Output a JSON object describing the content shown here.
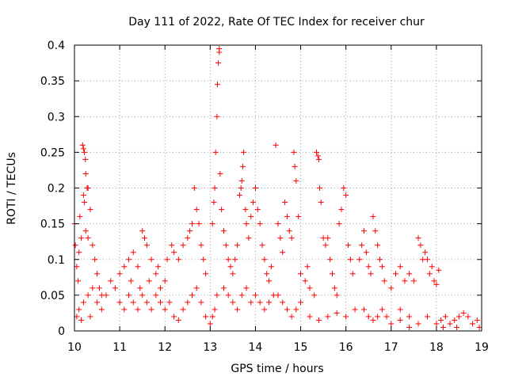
{
  "chart_data": {
    "type": "scatter",
    "title": "Day 111 of 2022, Rate Of TEC Index for receiver chur",
    "xlabel": "GPS time / hours",
    "ylabel": "ROTI / TECUs",
    "xlim": [
      10,
      19
    ],
    "ylim": [
      0,
      0.4
    ],
    "x_ticks": [
      10,
      11,
      12,
      13,
      14,
      15,
      16,
      17,
      18,
      19
    ],
    "y_ticks": [
      0,
      0.05,
      0.1,
      0.15,
      0.2,
      0.25,
      0.3,
      0.35,
      0.4
    ],
    "y_tick_labels": [
      "0",
      "0.05",
      "0.1",
      "0.15",
      "0.2",
      "0.25",
      "0.3",
      "0.35",
      "0.4"
    ],
    "grid": true,
    "marker_color": "#ff0000",
    "marker": "plus",
    "legend": "none",
    "series": [
      {
        "values": [
          [
            10.0,
            0.15
          ],
          [
            10.02,
            0.12
          ],
          [
            10.05,
            0.09
          ],
          [
            10.08,
            0.07
          ],
          [
            10.1,
            0.11
          ],
          [
            10.12,
            0.16
          ],
          [
            10.15,
            0.13
          ],
          [
            10.18,
            0.26
          ],
          [
            10.2,
            0.255
          ],
          [
            10.22,
            0.25
          ],
          [
            10.24,
            0.24
          ],
          [
            10.25,
            0.22
          ],
          [
            10.28,
            0.2
          ],
          [
            10.3,
            0.2
          ],
          [
            10.35,
            0.17
          ],
          [
            10.2,
            0.19
          ],
          [
            10.22,
            0.18
          ],
          [
            10.25,
            0.14
          ],
          [
            10.3,
            0.13
          ],
          [
            10.4,
            0.12
          ],
          [
            10.45,
            0.1
          ],
          [
            10.5,
            0.08
          ],
          [
            10.55,
            0.06
          ],
          [
            10.6,
            0.05
          ],
          [
            10.1,
            0.03
          ],
          [
            10.2,
            0.04
          ],
          [
            10.3,
            0.05
          ],
          [
            10.4,
            0.06
          ],
          [
            10.5,
            0.04
          ],
          [
            10.6,
            0.03
          ],
          [
            10.05,
            0.02
          ],
          [
            10.15,
            0.015
          ],
          [
            10.35,
            0.02
          ],
          [
            10.7,
            0.05
          ],
          [
            10.8,
            0.07
          ],
          [
            10.9,
            0.06
          ],
          [
            11.0,
            0.08
          ],
          [
            11.1,
            0.09
          ],
          [
            11.2,
            0.1
          ],
          [
            11.3,
            0.11
          ],
          [
            11.4,
            0.09
          ],
          [
            11.5,
            0.14
          ],
          [
            11.55,
            0.13
          ],
          [
            11.6,
            0.12
          ],
          [
            11.7,
            0.1
          ],
          [
            11.8,
            0.08
          ],
          [
            11.9,
            0.06
          ],
          [
            12.0,
            0.07
          ],
          [
            11.0,
            0.04
          ],
          [
            11.1,
            0.03
          ],
          [
            11.2,
            0.05
          ],
          [
            11.3,
            0.04
          ],
          [
            11.4,
            0.03
          ],
          [
            11.5,
            0.05
          ],
          [
            11.6,
            0.04
          ],
          [
            11.7,
            0.03
          ],
          [
            11.8,
            0.05
          ],
          [
            11.9,
            0.04
          ],
          [
            12.0,
            0.03
          ],
          [
            12.1,
            0.04
          ],
          [
            11.25,
            0.07
          ],
          [
            11.45,
            0.06
          ],
          [
            11.65,
            0.07
          ],
          [
            11.85,
            0.09
          ],
          [
            12.05,
            0.1
          ],
          [
            12.15,
            0.12
          ],
          [
            12.2,
            0.11
          ],
          [
            12.3,
            0.1
          ],
          [
            12.4,
            0.12
          ],
          [
            12.5,
            0.13
          ],
          [
            12.55,
            0.14
          ],
          [
            12.6,
            0.15
          ],
          [
            12.65,
            0.2
          ],
          [
            12.7,
            0.17
          ],
          [
            12.75,
            0.15
          ],
          [
            12.8,
            0.12
          ],
          [
            12.85,
            0.1
          ],
          [
            12.9,
            0.08
          ],
          [
            12.2,
            0.02
          ],
          [
            12.3,
            0.015
          ],
          [
            12.4,
            0.03
          ],
          [
            12.5,
            0.04
          ],
          [
            12.6,
            0.05
          ],
          [
            12.7,
            0.06
          ],
          [
            12.8,
            0.04
          ],
          [
            12.9,
            0.02
          ],
          [
            13.0,
            0.01
          ],
          [
            13.05,
            0.02
          ],
          [
            13.1,
            0.03
          ],
          [
            13.15,
            0.05
          ],
          [
            13.05,
            0.15
          ],
          [
            13.08,
            0.18
          ],
          [
            13.1,
            0.2
          ],
          [
            13.12,
            0.25
          ],
          [
            13.15,
            0.3
          ],
          [
            13.16,
            0.345
          ],
          [
            13.18,
            0.375
          ],
          [
            13.2,
            0.39
          ],
          [
            13.2,
            0.395
          ],
          [
            13.22,
            0.22
          ],
          [
            13.25,
            0.17
          ],
          [
            13.3,
            0.14
          ],
          [
            13.35,
            0.12
          ],
          [
            13.4,
            0.1
          ],
          [
            13.45,
            0.09
          ],
          [
            13.5,
            0.08
          ],
          [
            13.55,
            0.1
          ],
          [
            13.6,
            0.12
          ],
          [
            13.65,
            0.19
          ],
          [
            13.68,
            0.2
          ],
          [
            13.7,
            0.21
          ],
          [
            13.72,
            0.23
          ],
          [
            13.74,
            0.25
          ],
          [
            13.78,
            0.17
          ],
          [
            13.8,
            0.15
          ],
          [
            13.85,
            0.13
          ],
          [
            13.9,
            0.16
          ],
          [
            13.95,
            0.18
          ],
          [
            14.0,
            0.2
          ],
          [
            14.05,
            0.17
          ],
          [
            14.1,
            0.15
          ],
          [
            14.15,
            0.12
          ],
          [
            14.2,
            0.1
          ],
          [
            14.25,
            0.08
          ],
          [
            14.3,
            0.07
          ],
          [
            14.35,
            0.09
          ],
          [
            13.3,
            0.06
          ],
          [
            13.4,
            0.05
          ],
          [
            13.5,
            0.04
          ],
          [
            13.6,
            0.03
          ],
          [
            13.7,
            0.05
          ],
          [
            13.8,
            0.06
          ],
          [
            13.9,
            0.04
          ],
          [
            14.0,
            0.05
          ],
          [
            14.1,
            0.04
          ],
          [
            14.2,
            0.03
          ],
          [
            14.3,
            0.04
          ],
          [
            14.4,
            0.05
          ],
          [
            14.45,
            0.26
          ],
          [
            14.5,
            0.15
          ],
          [
            14.55,
            0.13
          ],
          [
            14.6,
            0.11
          ],
          [
            14.65,
            0.18
          ],
          [
            14.7,
            0.16
          ],
          [
            14.75,
            0.14
          ],
          [
            14.8,
            0.13
          ],
          [
            14.85,
            0.25
          ],
          [
            14.87,
            0.23
          ],
          [
            14.9,
            0.21
          ],
          [
            14.95,
            0.16
          ],
          [
            14.5,
            0.05
          ],
          [
            14.6,
            0.04
          ],
          [
            14.7,
            0.03
          ],
          [
            14.8,
            0.02
          ],
          [
            14.9,
            0.03
          ],
          [
            15.0,
            0.04
          ],
          [
            15.0,
            0.08
          ],
          [
            15.1,
            0.07
          ],
          [
            15.15,
            0.09
          ],
          [
            15.2,
            0.06
          ],
          [
            15.3,
            0.05
          ],
          [
            15.35,
            0.25
          ],
          [
            15.38,
            0.245
          ],
          [
            15.4,
            0.24
          ],
          [
            15.42,
            0.2
          ],
          [
            15.45,
            0.18
          ],
          [
            15.5,
            0.13
          ],
          [
            15.55,
            0.12
          ],
          [
            15.6,
            0.13
          ],
          [
            15.65,
            0.1
          ],
          [
            15.7,
            0.08
          ],
          [
            15.75,
            0.06
          ],
          [
            15.8,
            0.05
          ],
          [
            15.85,
            0.15
          ],
          [
            15.9,
            0.17
          ],
          [
            15.95,
            0.2
          ],
          [
            16.0,
            0.19
          ],
          [
            16.05,
            0.12
          ],
          [
            16.1,
            0.1
          ],
          [
            16.15,
            0.08
          ],
          [
            15.2,
            0.02
          ],
          [
            15.4,
            0.015
          ],
          [
            15.6,
            0.02
          ],
          [
            15.8,
            0.025
          ],
          [
            16.0,
            0.02
          ],
          [
            16.2,
            0.03
          ],
          [
            16.3,
            0.1
          ],
          [
            16.35,
            0.12
          ],
          [
            16.4,
            0.14
          ],
          [
            16.45,
            0.11
          ],
          [
            16.5,
            0.09
          ],
          [
            16.55,
            0.08
          ],
          [
            16.6,
            0.16
          ],
          [
            16.65,
            0.14
          ],
          [
            16.7,
            0.12
          ],
          [
            16.75,
            0.1
          ],
          [
            16.8,
            0.09
          ],
          [
            16.85,
            0.07
          ],
          [
            16.4,
            0.03
          ],
          [
            16.5,
            0.02
          ],
          [
            16.6,
            0.015
          ],
          [
            16.7,
            0.02
          ],
          [
            16.8,
            0.03
          ],
          [
            16.9,
            0.02
          ],
          [
            17.0,
            0.06
          ],
          [
            17.1,
            0.08
          ],
          [
            17.2,
            0.09
          ],
          [
            17.3,
            0.07
          ],
          [
            17.4,
            0.08
          ],
          [
            17.5,
            0.07
          ],
          [
            17.6,
            0.13
          ],
          [
            17.65,
            0.12
          ],
          [
            17.7,
            0.1
          ],
          [
            17.75,
            0.11
          ],
          [
            17.8,
            0.1
          ],
          [
            17.85,
            0.08
          ],
          [
            17.9,
            0.09
          ],
          [
            17.95,
            0.07
          ],
          [
            18.0,
            0.065
          ],
          [
            18.05,
            0.085
          ],
          [
            17.2,
            0.03
          ],
          [
            17.4,
            0.02
          ],
          [
            17.0,
            0.01
          ],
          [
            17.2,
            0.015
          ],
          [
            17.4,
            0.005
          ],
          [
            17.6,
            0.01
          ],
          [
            17.8,
            0.02
          ],
          [
            18.0,
            0.01
          ],
          [
            18.1,
            0.015
          ],
          [
            18.2,
            0.02
          ],
          [
            18.3,
            0.01
          ],
          [
            18.4,
            0.015
          ],
          [
            18.5,
            0.02
          ],
          [
            18.6,
            0.025
          ],
          [
            18.7,
            0.02
          ],
          [
            18.8,
            0.01
          ],
          [
            18.9,
            0.015
          ],
          [
            18.95,
            0.005
          ],
          [
            18.15,
            0.005
          ],
          [
            18.45,
            0.005
          ]
        ]
      }
    ]
  }
}
